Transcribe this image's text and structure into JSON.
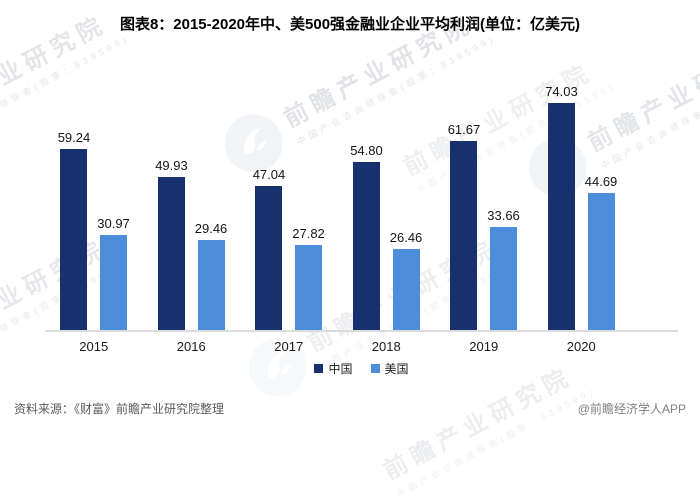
{
  "title": "图表8：2015-2020年中、美500强金融业企业平均利润(单位：亿美元)",
  "chart_data": {
    "type": "bar",
    "categories": [
      "2015",
      "2016",
      "2017",
      "2018",
      "2019",
      "2020"
    ],
    "series": [
      {
        "key": "china",
        "name": "中国",
        "color": "#16316d",
        "values": [
          59.24,
          49.93,
          47.04,
          54.8,
          61.67,
          74.03
        ]
      },
      {
        "key": "usa",
        "name": "美国",
        "color": "#4d8edb",
        "values": [
          30.97,
          29.46,
          27.82,
          26.46,
          33.66,
          44.69
        ]
      }
    ],
    "value_label_decimals": 2,
    "ylim": [
      0,
      86
    ],
    "grid": false,
    "legend_position": "bottom",
    "xlabel": "",
    "ylabel": ""
  },
  "watermark": {
    "text": "前瞻产业研究院",
    "subtext": "中国产业咨询领导者(股票：839599)"
  },
  "footer": {
    "source": "资料来源：《财富》前瞻产业研究院整理",
    "credit": "@前瞻经济学人APP"
  }
}
